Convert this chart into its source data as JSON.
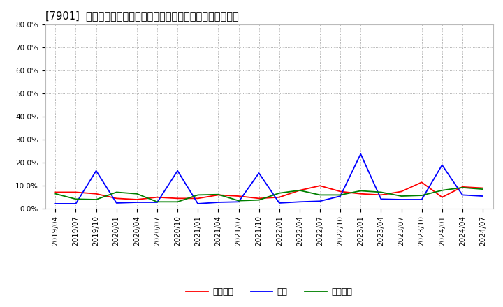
{
  "title": "[7901]  売上債権、在庫、買入債務の総資産に対する比率の推移",
  "ylim": [
    0.0,
    0.8
  ],
  "yticks": [
    0.0,
    0.1,
    0.2,
    0.3,
    0.4,
    0.5,
    0.6,
    0.7,
    0.8
  ],
  "dates": [
    "2019/04",
    "2019/07",
    "2019/10",
    "2020/01",
    "2020/04",
    "2020/07",
    "2020/10",
    "2021/01",
    "2021/04",
    "2021/07",
    "2021/10",
    "2022/01",
    "2022/04",
    "2022/07",
    "2022/10",
    "2023/01",
    "2023/04",
    "2023/07",
    "2023/10",
    "2024/01",
    "2024/04",
    "2024/07"
  ],
  "urikake": [
    0.072,
    0.072,
    0.065,
    0.045,
    0.04,
    0.05,
    0.045,
    0.045,
    0.06,
    0.055,
    0.045,
    0.05,
    0.08,
    0.1,
    0.075,
    0.065,
    0.06,
    0.075,
    0.115,
    0.05,
    0.095,
    0.09
  ],
  "zaiko": [
    0.022,
    0.022,
    0.165,
    0.025,
    0.028,
    0.028,
    0.165,
    0.022,
    0.028,
    0.03,
    0.155,
    0.025,
    0.03,
    0.033,
    0.055,
    0.238,
    0.042,
    0.04,
    0.04,
    0.19,
    0.06,
    0.055
  ],
  "kainyu": [
    0.065,
    0.042,
    0.04,
    0.072,
    0.065,
    0.03,
    0.03,
    0.06,
    0.062,
    0.035,
    0.038,
    0.068,
    0.08,
    0.06,
    0.06,
    0.078,
    0.072,
    0.055,
    0.058,
    0.08,
    0.092,
    0.085
  ],
  "color_urikake": "#ff0000",
  "color_zaiko": "#0000ff",
  "color_kainyu": "#008000",
  "legend_urikake": "売上債権",
  "legend_zaiko": "在庫",
  "legend_kainyu": "買入債務",
  "bg_color": "#ffffff",
  "plot_bg_color": "#ffffff",
  "grid_color": "#999999",
  "title_fontsize": 10.5,
  "tick_fontsize": 7.5,
  "legend_fontsize": 9
}
